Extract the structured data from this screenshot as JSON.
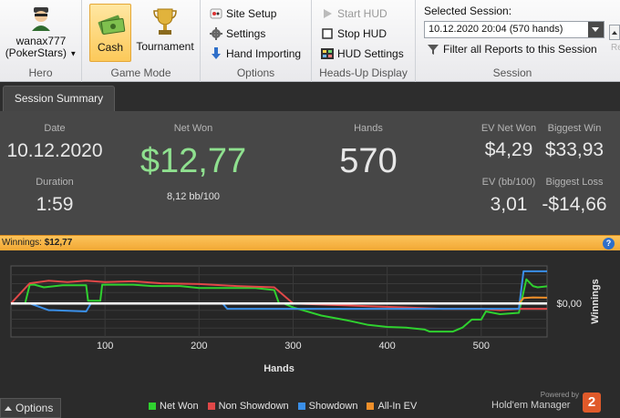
{
  "ribbon": {
    "hero": {
      "name": "wanax777",
      "site": "(PokerStars)",
      "label": "Hero"
    },
    "game_mode": {
      "cash": "Cash",
      "tournament": "Tournament",
      "label": "Game Mode",
      "active": "Cash"
    },
    "options": {
      "site_setup": "Site Setup",
      "settings": "Settings",
      "hand_importing": "Hand Importing",
      "label": "Options"
    },
    "hud": {
      "start_hud": "Start HUD",
      "stop_hud": "Stop HUD",
      "hud_settings": "HUD Settings",
      "label": "Heads-Up Display"
    },
    "session": {
      "title": "Selected Session:",
      "selected": "10.12.2020 20:04 (570 hands)",
      "filter": "Filter all Reports to this Session",
      "label": "Session"
    },
    "cut_off_label": "Re"
  },
  "tabs": [
    {
      "label": "Session Summary",
      "active": true
    }
  ],
  "summary": {
    "date_label": "Date",
    "date": "10.12.2020",
    "duration_label": "Duration",
    "duration": "1:59",
    "net_won_label": "Net Won",
    "net_won": "$12,77",
    "bb100": "8,12 bb/100",
    "hands_label": "Hands",
    "hands": "570",
    "ev_net_won_label": "EV Net Won",
    "ev_net_won": "$4,29",
    "biggest_win_label": "Biggest Win",
    "biggest_win": "$33,93",
    "ev_bb100_label": "EV (bb/100)",
    "ev_bb100": "3,01",
    "biggest_loss_label": "Biggest Loss",
    "biggest_loss": "-$14,66"
  },
  "winnings_bar": {
    "label": "Winnings:",
    "value": "$12,77"
  },
  "chart_data": {
    "type": "line",
    "xlabel": "Hands",
    "ylabel": "Winnings",
    "x_ticks": [
      100,
      200,
      300,
      400,
      500
    ],
    "xlim": [
      0,
      570
    ],
    "y_tick_label": "$0,00",
    "grid": true,
    "legend_placement": "bottom",
    "series": [
      {
        "name": "Net Won",
        "color": "#2fd12f",
        "x": [
          0,
          15,
          20,
          25,
          35,
          55,
          80,
          82,
          95,
          97,
          130,
          150,
          180,
          200,
          230,
          260,
          280,
          285,
          290,
          300,
          330,
          345,
          360,
          380,
          400,
          420,
          440,
          445,
          460,
          470,
          480,
          490,
          500,
          505,
          520,
          540,
          548,
          555,
          560,
          570
        ],
        "y": [
          0.0,
          0.0,
          14.0,
          14.0,
          12.0,
          13.5,
          13.5,
          2.0,
          2.0,
          14.0,
          14.0,
          13.0,
          13.0,
          11.5,
          11.5,
          11.5,
          10.0,
          0.0,
          0.0,
          -3.0,
          -9.0,
          -11.0,
          -13.0,
          -16.0,
          -17.5,
          -18.0,
          -19.5,
          -21.0,
          -21.0,
          -21.0,
          -18.0,
          -12.0,
          -12.0,
          -6.0,
          -8.0,
          -7.0,
          18.0,
          13.0,
          12.0,
          12.77
        ]
      },
      {
        "name": "Non Showdown",
        "color": "#e04848",
        "x": [
          0,
          20,
          40,
          60,
          80,
          100,
          130,
          160,
          200,
          240,
          280,
          300,
          340,
          380,
          420,
          460,
          500,
          520,
          540,
          570
        ],
        "y": [
          0.0,
          15.0,
          17.0,
          16.0,
          17.0,
          16.0,
          16.5,
          15.0,
          14.5,
          13.0,
          12.0,
          0.0,
          -1.0,
          -2.0,
          -3.0,
          -4.0,
          -4.0,
          -5.0,
          -4.0,
          -4.0
        ]
      },
      {
        "name": "Showdown",
        "color": "#3a8fe8",
        "x": [
          0,
          20,
          40,
          45,
          80,
          85,
          200,
          225,
          230,
          300,
          400,
          500,
          540,
          545,
          570
        ],
        "y": [
          0.0,
          0.0,
          -5.0,
          -5.0,
          -6.0,
          0.0,
          0.0,
          0.0,
          -4.0,
          -4.0,
          -4.0,
          -4.0,
          -4.0,
          24.0,
          24.0
        ]
      },
      {
        "name": "All-In EV",
        "color": "#f0902a",
        "x": [
          0,
          100,
          200,
          300,
          400,
          500,
          540,
          545,
          555,
          570
        ],
        "y": [
          0.0,
          0.0,
          0.0,
          0.0,
          0.0,
          0.0,
          0.0,
          4.0,
          4.5,
          4.29
        ]
      }
    ]
  },
  "footer": {
    "options_label": "Options",
    "powered_by": "Powered by",
    "brand": "Hold'em Manager",
    "brand_badge": "2"
  }
}
